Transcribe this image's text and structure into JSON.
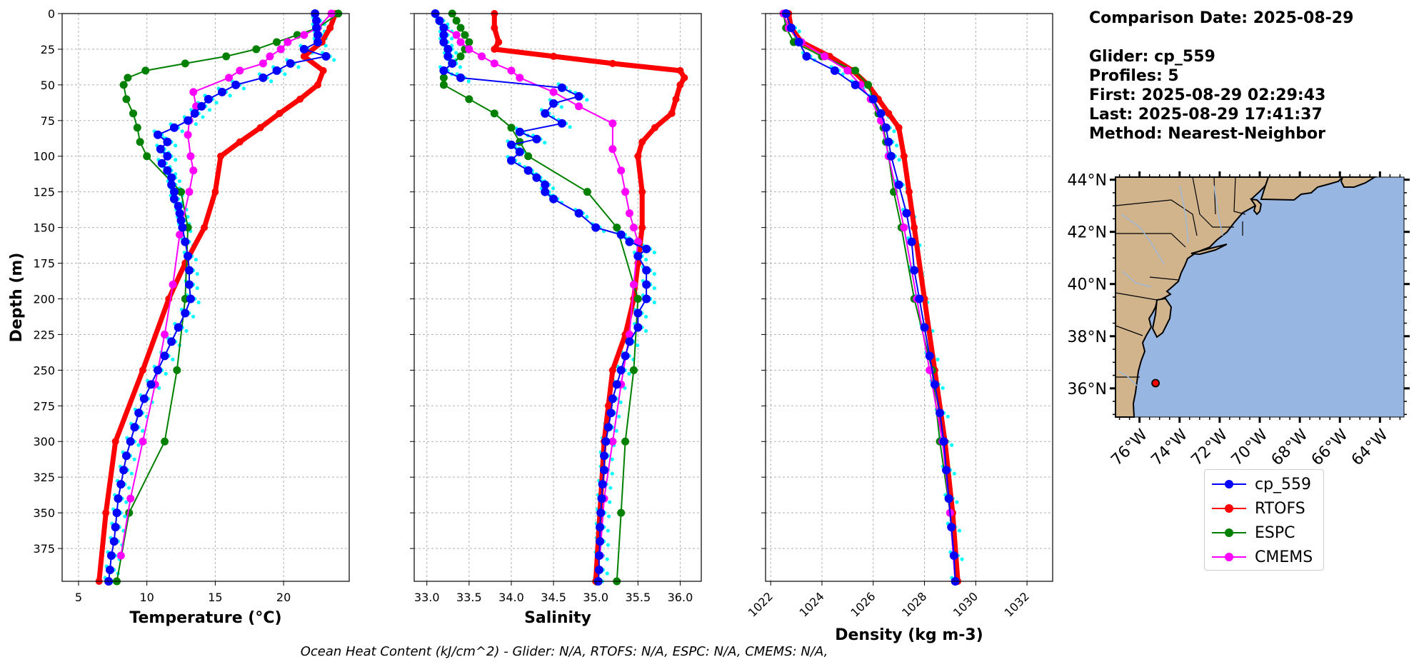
{
  "info": {
    "comparison": "Comparison Date: 2025-08-29",
    "glider": "Glider: cp_559",
    "profiles": "Profiles: 5",
    "first": "First: 2025-08-29 02:29:43",
    "last": "Last: 2025-08-29 17:41:37",
    "method": "Method: Nearest-Neighbor"
  },
  "footer": "Ocean Heat Content (kJ/cm^2) - Glider: N/A,  RTOFS: N/A,  ESPC: N/A,  CMEMS: N/A,",
  "colors": {
    "glider": "#0000ff",
    "rtofs": "#ff0000",
    "espc": "#008000",
    "cmems": "#ff00ff",
    "raw": "#00ffff",
    "ocean": "#98b6e2",
    "land": "#d2b48c"
  },
  "legend": [
    {
      "label": "cp_559",
      "color": "#0000ff"
    },
    {
      "label": "RTOFS",
      "color": "#ff0000"
    },
    {
      "label": "ESPC",
      "color": "#008000"
    },
    {
      "label": "CMEMS",
      "color": "#ff00ff"
    }
  ],
  "chart_data": [
    {
      "type": "line",
      "xlabel": "Temperature (°C)",
      "ylabel": "Depth (m)",
      "xlim": [
        3.8,
        24.8
      ],
      "ylim": [
        398,
        0
      ],
      "xticks": [
        "5",
        "10",
        "15",
        "20"
      ],
      "yticks": [
        "0",
        "25",
        "50",
        "75",
        "100",
        "125",
        "150",
        "175",
        "200",
        "225",
        "250",
        "275",
        "300",
        "325",
        "350",
        "375"
      ],
      "grid": true,
      "series": [
        {
          "name": "cp_559",
          "depth": [
            0,
            5,
            10,
            15,
            20,
            25,
            30,
            35,
            40,
            45,
            50,
            55,
            60,
            65,
            70,
            75,
            80,
            85,
            90,
            95,
            100,
            105,
            110,
            115,
            120,
            125,
            130,
            135,
            140,
            145,
            150,
            160,
            170,
            180,
            190,
            200,
            210,
            220,
            230,
            240,
            250,
            260,
            270,
            280,
            290,
            300,
            310,
            320,
            330,
            340,
            350,
            360,
            370,
            380,
            390,
            398
          ],
          "values": [
            22.3,
            22.4,
            22.4,
            22.5,
            22.5,
            21.5,
            23.1,
            20.5,
            19.5,
            18.5,
            16.5,
            15.5,
            14.5,
            14.0,
            13.5,
            13.0,
            12.0,
            10.8,
            11.5,
            11.0,
            11.5,
            11.1,
            11.5,
            11.8,
            11.8,
            12.0,
            12.0,
            12.3,
            12.4,
            12.5,
            12.6,
            12.8,
            13.0,
            13.1,
            13.1,
            13.2,
            12.8,
            12.3,
            11.8,
            11.3,
            10.8,
            10.3,
            9.8,
            9.4,
            9.1,
            8.8,
            8.5,
            8.3,
            8.1,
            7.9,
            7.8,
            7.7,
            7.6,
            7.4,
            7.3,
            7.2
          ]
        },
        {
          "name": "RTOFS",
          "depth": [
            0,
            10,
            20,
            30,
            40,
            50,
            60,
            70,
            80,
            90,
            100,
            125,
            150,
            175,
            200,
            250,
            300,
            350,
            398
          ],
          "values": [
            23.8,
            23.4,
            22.8,
            21.5,
            22.9,
            22.5,
            21.2,
            19.7,
            18.3,
            16.8,
            15.4,
            15.0,
            14.2,
            12.8,
            11.6,
            9.7,
            7.7,
            7.0,
            6.5
          ]
        },
        {
          "name": "ESPC",
          "depth": [
            0,
            10,
            15,
            20,
            25,
            30,
            35,
            40,
            45,
            50,
            60,
            70,
            80,
            90,
            100,
            125,
            150,
            200,
            250,
            300,
            350,
            398
          ],
          "values": [
            24.0,
            22.5,
            21.0,
            19.5,
            18.0,
            15.8,
            12.8,
            9.9,
            8.6,
            8.3,
            8.5,
            9.0,
            9.3,
            9.5,
            10.0,
            12.5,
            13.0,
            12.8,
            12.2,
            11.3,
            8.7,
            7.8
          ]
        },
        {
          "name": "CMEMS",
          "depth": [
            0,
            10,
            15,
            20,
            25,
            30,
            35,
            40,
            45,
            55,
            65,
            75,
            85,
            100,
            110,
            125,
            155,
            190,
            225,
            260,
            300,
            340,
            380
          ],
          "values": [
            23.5,
            22.5,
            21.5,
            20.3,
            19.8,
            19.0,
            18.5,
            16.8,
            16.0,
            13.4,
            13.6,
            13.1,
            13.0,
            13.2,
            13.4,
            13.1,
            12.4,
            11.9,
            11.3,
            10.6,
            9.7,
            8.8,
            8.1
          ]
        }
      ]
    },
    {
      "type": "line",
      "xlabel": "Salinity",
      "ylabel": "",
      "xlim": [
        32.85,
        36.25
      ],
      "ylim": [
        398,
        0
      ],
      "xticks": [
        "33.0",
        "33.5",
        "34.0",
        "34.5",
        "35.0",
        "35.5",
        "36.0"
      ],
      "grid": true,
      "series": [
        {
          "name": "cp_559",
          "depth": [
            0,
            5,
            10,
            15,
            20,
            25,
            30,
            35,
            40,
            45,
            52,
            58,
            63,
            70,
            77,
            83,
            88,
            92,
            97,
            103,
            110,
            115,
            120,
            125,
            130,
            140,
            150,
            155,
            160,
            165,
            170,
            180,
            190,
            200,
            210,
            220,
            230,
            240,
            250,
            260,
            270,
            280,
            290,
            300,
            310,
            320,
            330,
            340,
            350,
            360,
            370,
            380,
            390,
            398
          ],
          "values": [
            33.1,
            33.15,
            33.2,
            33.2,
            33.2,
            33.25,
            33.25,
            33.3,
            33.2,
            33.4,
            34.6,
            34.8,
            34.5,
            34.4,
            34.6,
            34.1,
            34.3,
            34.0,
            34.1,
            34.0,
            34.2,
            34.3,
            34.4,
            34.4,
            34.5,
            34.8,
            35.0,
            35.3,
            35.4,
            35.6,
            35.5,
            35.6,
            35.6,
            35.6,
            35.5,
            35.5,
            35.4,
            35.35,
            35.3,
            35.25,
            35.2,
            35.18,
            35.15,
            35.12,
            35.1,
            35.1,
            35.08,
            35.07,
            35.06,
            35.05,
            35.05,
            35.04,
            35.04,
            35.03
          ]
        },
        {
          "name": "RTOFS",
          "depth": [
            0,
            10,
            20,
            25,
            30,
            35,
            40,
            45,
            50,
            60,
            70,
            80,
            90,
            100,
            125,
            150,
            175,
            200,
            225,
            250,
            275,
            300,
            350,
            398
          ],
          "values": [
            33.8,
            33.8,
            33.85,
            33.8,
            34.5,
            35.2,
            36.0,
            36.05,
            36.0,
            35.95,
            35.9,
            35.7,
            35.55,
            35.5,
            35.55,
            35.55,
            35.5,
            35.45,
            35.35,
            35.2,
            35.15,
            35.1,
            35.05,
            35.0
          ]
        },
        {
          "name": "ESPC",
          "depth": [
            0,
            5,
            10,
            15,
            20,
            25,
            30,
            35,
            40,
            45,
            50,
            60,
            70,
            80,
            90,
            100,
            125,
            150,
            200,
            250,
            300,
            350,
            398
          ],
          "values": [
            33.3,
            33.35,
            33.4,
            33.45,
            33.5,
            33.45,
            33.4,
            33.3,
            33.2,
            33.2,
            33.2,
            33.5,
            33.8,
            34.0,
            34.1,
            34.2,
            34.9,
            35.25,
            35.5,
            35.45,
            35.35,
            35.3,
            35.25
          ]
        },
        {
          "name": "CMEMS",
          "depth": [
            0,
            10,
            15,
            20,
            25,
            30,
            35,
            40,
            45,
            55,
            65,
            77,
            95,
            110,
            125,
            140,
            150,
            160,
            190,
            225,
            260,
            300,
            340,
            380
          ],
          "values": [
            33.1,
            33.2,
            33.35,
            33.4,
            33.5,
            33.65,
            33.8,
            34.0,
            34.1,
            34.5,
            34.8,
            35.2,
            35.2,
            35.3,
            35.35,
            35.4,
            35.45,
            35.5,
            35.45,
            35.4,
            35.3,
            35.2,
            35.1,
            35.05
          ]
        }
      ]
    },
    {
      "type": "line",
      "xlabel": "Density (kg m-3)",
      "ylabel": "",
      "xlim": [
        1021.8,
        1033.0
      ],
      "ylim": [
        398,
        0
      ],
      "xticks": [
        "1022",
        "1024",
        "1026",
        "1028",
        "1030",
        "1032"
      ],
      "grid": true,
      "series": [
        {
          "name": "cp_559",
          "depth": [
            0,
            10,
            20,
            30,
            40,
            50,
            60,
            70,
            80,
            90,
            100,
            120,
            140,
            160,
            180,
            200,
            220,
            240,
            260,
            280,
            300,
            320,
            340,
            360,
            380,
            398
          ],
          "values": [
            1022.6,
            1022.8,
            1023.1,
            1023.4,
            1024.5,
            1025.3,
            1026.0,
            1026.3,
            1026.5,
            1026.6,
            1026.7,
            1027.0,
            1027.3,
            1027.5,
            1027.6,
            1027.8,
            1028.0,
            1028.2,
            1028.4,
            1028.6,
            1028.75,
            1028.85,
            1028.95,
            1029.05,
            1029.15,
            1029.2
          ]
        },
        {
          "name": "RTOFS",
          "depth": [
            0,
            10,
            20,
            30,
            40,
            50,
            60,
            70,
            80,
            100,
            125,
            150,
            200,
            250,
            300,
            350,
            398
          ],
          "values": [
            1022.7,
            1022.8,
            1023.2,
            1024.3,
            1025.2,
            1025.8,
            1026.2,
            1026.6,
            1027.0,
            1027.2,
            1027.4,
            1027.6,
            1028.0,
            1028.4,
            1028.8,
            1029.1,
            1029.3
          ]
        },
        {
          "name": "ESPC",
          "depth": [
            0,
            10,
            20,
            30,
            40,
            50,
            60,
            70,
            80,
            90,
            100,
            125,
            150,
            200,
            250,
            300,
            350,
            398
          ],
          "values": [
            1022.5,
            1022.6,
            1022.9,
            1024.0,
            1025.3,
            1025.8,
            1026.0,
            1026.2,
            1026.4,
            1026.5,
            1026.6,
            1026.8,
            1027.1,
            1027.6,
            1028.3,
            1028.6,
            1029.0,
            1029.2
          ]
        },
        {
          "name": "CMEMS",
          "depth": [
            0,
            10,
            20,
            30,
            40,
            50,
            60,
            75,
            100,
            150,
            200,
            250,
            300,
            350,
            398
          ],
          "values": [
            1022.5,
            1022.7,
            1023.2,
            1024.1,
            1025.0,
            1025.5,
            1025.9,
            1026.3,
            1026.6,
            1027.2,
            1027.7,
            1028.2,
            1028.7,
            1029.0,
            1029.2
          ]
        }
      ]
    }
  ],
  "map": {
    "lat_ticks": [
      "44°N",
      "42°N",
      "40°N",
      "38°N",
      "36°N"
    ],
    "lon_ticks": [
      "76°W",
      "74°W",
      "72°W",
      "70°W",
      "68°W",
      "66°W",
      "64°W"
    ],
    "lon_range": [
      -77.2,
      -62.8
    ],
    "lat_range": [
      34.9,
      44.1
    ],
    "glider_position": {
      "lon": -75.2,
      "lat": 36.2
    }
  }
}
